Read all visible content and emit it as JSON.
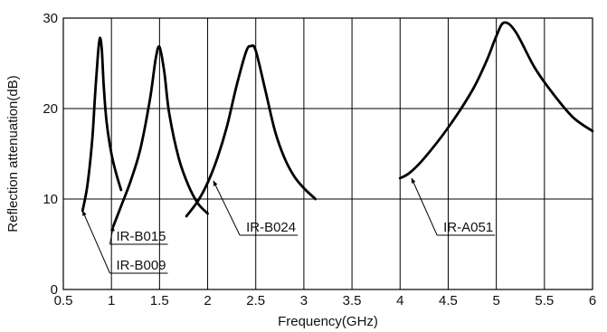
{
  "chart_data": {
    "type": "line",
    "title": "",
    "xlabel": "Frequency(GHz)",
    "ylabel": "Reflection attenuation(dB)",
    "xlim": [
      0.5,
      6
    ],
    "ylim": [
      0,
      30
    ],
    "x_ticks": [
      "0.5",
      "1",
      "1.5",
      "2",
      "2.5",
      "3",
      "3.5",
      "4",
      "4.5",
      "5",
      "5.5",
      "6"
    ],
    "y_ticks": [
      "0",
      "10",
      "20",
      "30"
    ],
    "grid": true,
    "legend": "none",
    "series": [
      {
        "name": "IR-B009",
        "x": [
          0.7,
          0.75,
          0.8,
          0.83,
          0.86,
          0.88,
          0.9,
          0.92,
          0.95,
          1.0,
          1.05,
          1.1
        ],
        "y": [
          8.7,
          11.5,
          16.5,
          21.5,
          26.0,
          27.8,
          26.5,
          22.5,
          18.5,
          15.0,
          12.8,
          11.0
        ]
      },
      {
        "name": "IR-B015",
        "x": [
          1.02,
          1.1,
          1.2,
          1.3,
          1.4,
          1.46,
          1.5,
          1.55,
          1.6,
          1.7,
          1.8,
          1.9,
          2.0
        ],
        "y": [
          7.0,
          9.2,
          12.0,
          15.5,
          21.0,
          25.5,
          26.8,
          24.0,
          19.5,
          14.5,
          11.5,
          9.5,
          8.4
        ]
      },
      {
        "name": "IR-B024",
        "x": [
          1.78,
          1.9,
          2.0,
          2.1,
          2.2,
          2.3,
          2.4,
          2.45,
          2.5,
          2.6,
          2.7,
          2.8,
          2.9,
          3.0,
          3.12
        ],
        "y": [
          8.1,
          9.8,
          11.8,
          14.5,
          18.0,
          22.5,
          26.3,
          26.9,
          26.4,
          22.0,
          17.5,
          14.5,
          12.5,
          11.2,
          10.0
        ]
      },
      {
        "name": "IR-A051",
        "x": [
          4.0,
          4.1,
          4.25,
          4.5,
          4.75,
          4.9,
          5.0,
          5.08,
          5.2,
          5.4,
          5.6,
          5.8,
          6.0
        ],
        "y": [
          12.3,
          12.9,
          14.5,
          17.9,
          22.0,
          25.3,
          28.0,
          29.5,
          28.5,
          24.5,
          21.5,
          19.0,
          17.5
        ]
      }
    ],
    "annotations": [
      {
        "label": "IR-B009",
        "point": [
          0.7,
          8.7
        ],
        "label_at": [
          1.05,
          2.2
        ]
      },
      {
        "label": "IR-B015",
        "point": [
          1.02,
          7.0
        ],
        "label_at": [
          1.05,
          5.4
        ]
      },
      {
        "label": "IR-B024",
        "point": [
          2.06,
          12.0
        ],
        "label_at": [
          2.4,
          6.4
        ]
      },
      {
        "label": "IR-A051",
        "point": [
          4.12,
          12.3
        ],
        "label_at": [
          4.45,
          6.4
        ]
      }
    ]
  }
}
